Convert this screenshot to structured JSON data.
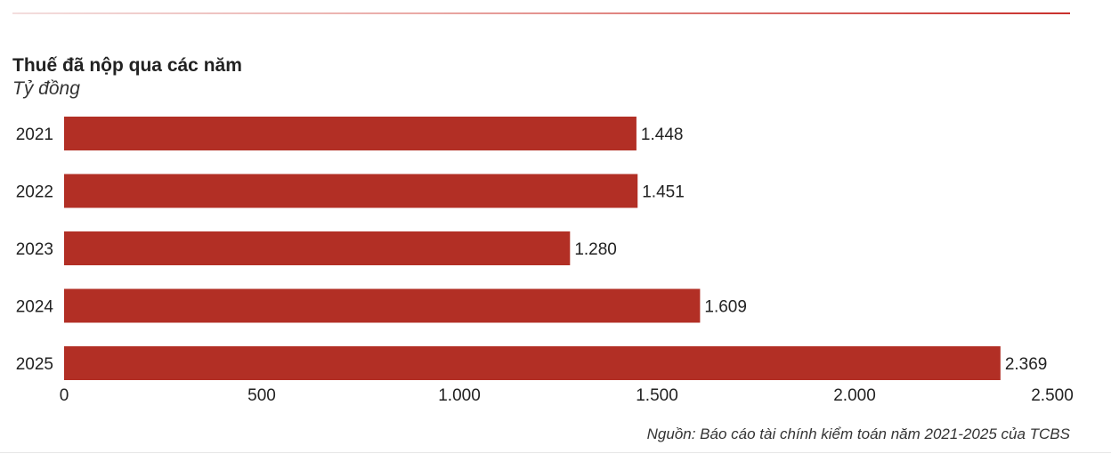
{
  "chart_data": {
    "type": "bar",
    "orientation": "horizontal",
    "title": "Thuế đã nộp qua các năm",
    "subtitle": "Tỷ đồng",
    "categories": [
      "2021",
      "2022",
      "2023",
      "2024",
      "2025"
    ],
    "values": [
      1448,
      1451,
      1280,
      1609,
      2369
    ],
    "value_labels": [
      "1.448",
      "1.451",
      "1.280",
      "1.609",
      "2.369"
    ],
    "x_ticks": [
      0,
      500,
      1000,
      1500,
      2000,
      2500
    ],
    "x_tick_labels": [
      "0",
      "500",
      "1.000",
      "1.500",
      "2.000",
      "2.500"
    ],
    "xlim": [
      0,
      2500
    ],
    "grid": false,
    "legend": "none",
    "bar_color": "#b22f25",
    "source": "Nguồn: Báo cáo tài chính kiểm toán năm 2021-2025 của TCBS"
  }
}
